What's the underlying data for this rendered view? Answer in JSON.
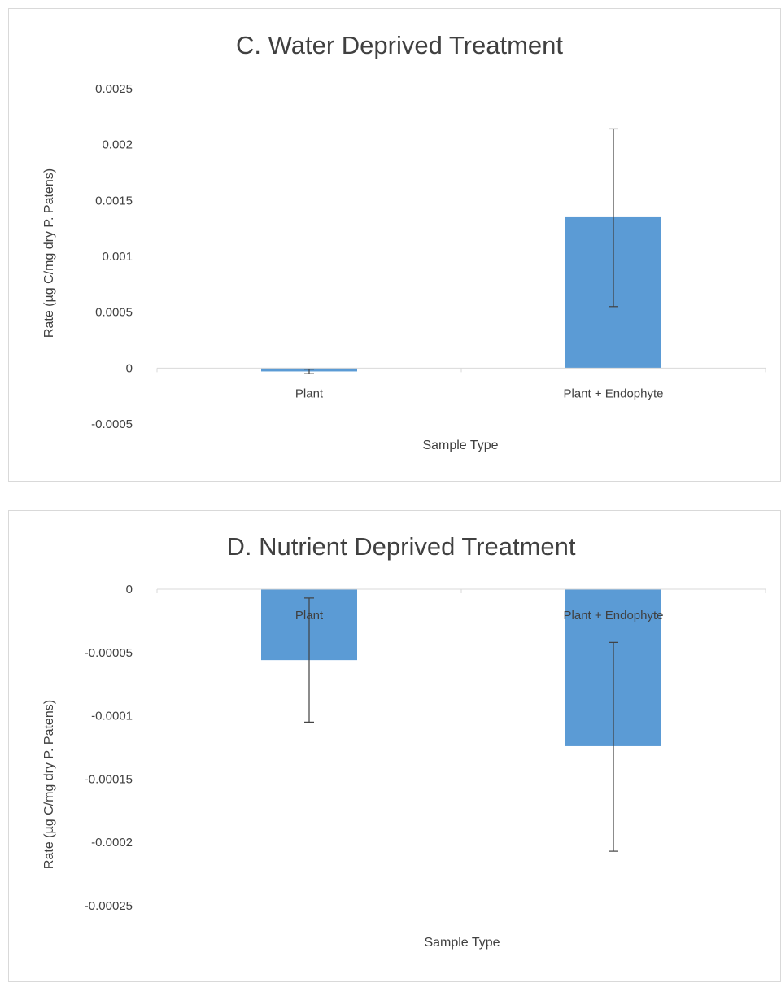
{
  "colors": {
    "bar": "#5b9bd5",
    "axis": "#d9d9d9",
    "error": "#404040",
    "text": "#404040"
  },
  "chart_data": [
    {
      "type": "bar",
      "title": "C. Water Deprived Treatment",
      "xlabel": "Sample Type",
      "ylabel": "Rate (µg C/mg dry P. Patens)",
      "categories": [
        "Plant",
        "Plant + Endophyte"
      ],
      "values": [
        -3e-05,
        0.00135
      ],
      "error_low": [
        -5e-05,
        0.00055
      ],
      "error_high": [
        -1e-05,
        0.00214
      ],
      "ylim": [
        -0.0005,
        0.0025
      ],
      "yticks": [
        "0.0025",
        "0.002",
        "0.0015",
        "0.001",
        "0.0005",
        "0",
        "-0.0005"
      ],
      "category_labels_position": "below-zero-line",
      "grid": false
    },
    {
      "type": "bar",
      "title": "D. Nutrient Deprived Treatment",
      "xlabel": "Sample Type",
      "ylabel": "Rate (µg C/mg dry P. Patens)",
      "categories": [
        "Plant",
        "Plant + Endophyte"
      ],
      "values": [
        -5.6e-05,
        -0.000124
      ],
      "error_low": [
        -0.000105,
        -0.000207
      ],
      "error_high": [
        -7e-06,
        -4.2e-05
      ],
      "ylim": [
        -0.00025,
        0
      ],
      "yticks": [
        "0",
        "-0.00005",
        "-0.0001",
        "-0.00015",
        "-0.0002",
        "-0.00025"
      ],
      "category_labels_position": "below-zero-line",
      "grid": false
    }
  ]
}
